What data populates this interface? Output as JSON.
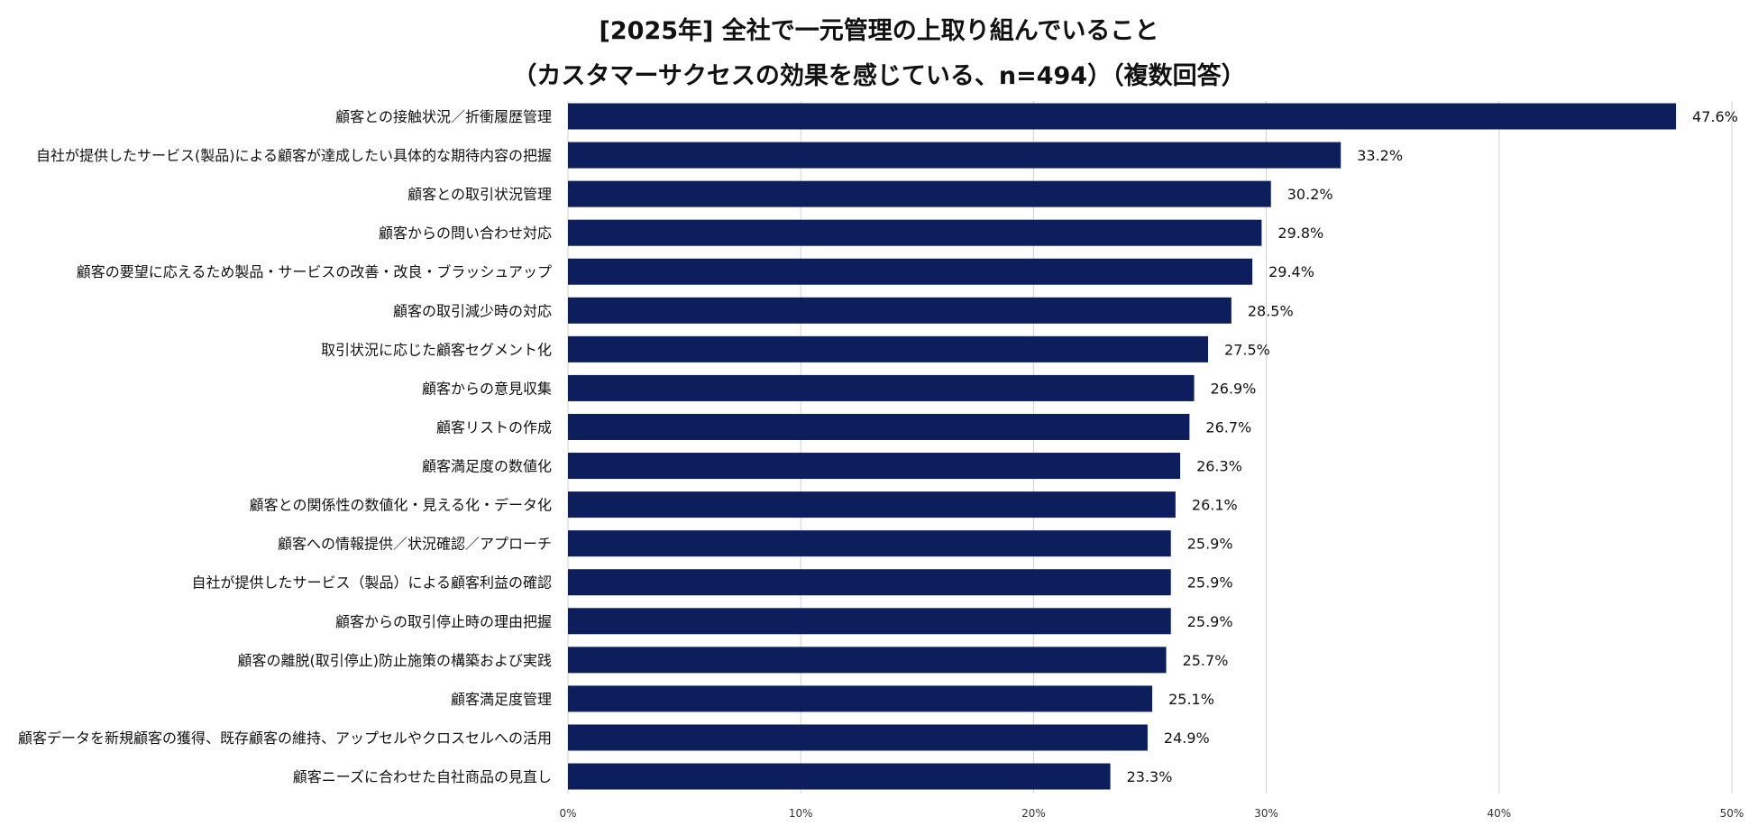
{
  "chart_data": {
    "type": "bar",
    "orientation": "horizontal",
    "title": "[2025年] 全社で一元管理の上取り組んでいること",
    "subtitle": "（カスタマーサクセスの効果を感じている、n=494）（複数回答）",
    "categories": [
      "顧客との接触状況／折衝履歴管理",
      "自社が提供したサービス(製品)による顧客が達成したい具体的な期待内容の把握",
      "顧客との取引状況管理",
      "顧客からの問い合わせ対応",
      "顧客の要望に応えるため製品・サービスの改善・改良・ブラッシュアップ",
      "顧客の取引減少時の対応",
      "取引状況に応じた顧客セグメント化",
      "顧客からの意見収集",
      "顧客リストの作成",
      "顧客満足度の数値化",
      "顧客との関係性の数値化・見える化・データ化",
      "顧客への情報提供／状況確認／アプローチ",
      "自社が提供したサービス（製品）による顧客利益の確認",
      "顧客からの取引停止時の理由把握",
      "顧客の離脱(取引停止)防止施策の構築および実践",
      "顧客満足度管理",
      "顧客データを新規顧客の獲得、既存顧客の維持、アップセルやクロスセルへの活用",
      "顧客ニーズに合わせた自社商品の見直し"
    ],
    "values": [
      47.6,
      33.2,
      30.2,
      29.8,
      29.4,
      28.5,
      27.5,
      26.9,
      26.7,
      26.3,
      26.1,
      25.9,
      25.9,
      25.9,
      25.7,
      25.1,
      24.9,
      23.3
    ],
    "value_labels": [
      "47.6%",
      "33.2%",
      "30.2%",
      "29.8%",
      "29.4%",
      "28.5%",
      "27.5%",
      "26.9%",
      "26.7%",
      "26.3%",
      "26.1%",
      "25.9%",
      "25.9%",
      "25.9%",
      "25.7%",
      "25.1%",
      "24.9%",
      "23.3%"
    ],
    "xlim": [
      0,
      50
    ],
    "xticks": [
      0,
      10,
      20,
      30,
      40,
      50
    ],
    "xtick_labels": [
      "0%",
      "10%",
      "20%",
      "30%",
      "40%",
      "50%"
    ],
    "grid": true,
    "bar_color": "#0c1f5c",
    "grid_color": "#d0d0d0"
  }
}
